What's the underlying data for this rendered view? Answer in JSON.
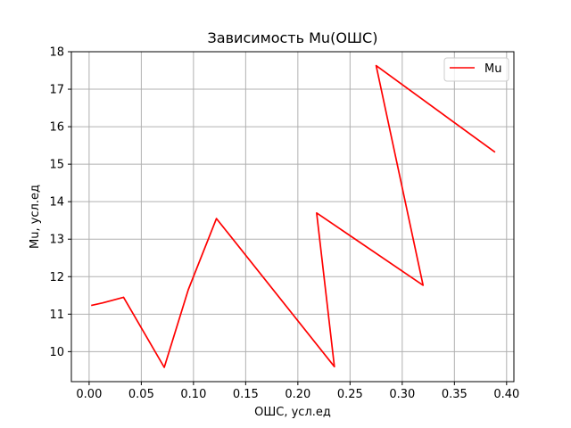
{
  "chart_data": {
    "type": "line",
    "title": "Зависимость Mu(ОШС)",
    "xlabel": "ОШС, усл.ед",
    "ylabel": "Mu, усл.ед",
    "xlim": [
      -0.017,
      0.407
    ],
    "ylim": [
      9.2,
      18.0
    ],
    "xticks": [
      0.0,
      0.05,
      0.1,
      0.15,
      0.2,
      0.25,
      0.3,
      0.35,
      0.4
    ],
    "xtick_labels": [
      "0.00",
      "0.05",
      "0.10",
      "0.15",
      "0.20",
      "0.25",
      "0.30",
      "0.35",
      "0.40"
    ],
    "yticks": [
      10,
      11,
      12,
      13,
      14,
      15,
      16,
      17,
      18
    ],
    "ytick_labels": [
      "10",
      "11",
      "12",
      "13",
      "14",
      "15",
      "16",
      "17",
      "18"
    ],
    "grid": true,
    "legend_position": "top-right",
    "series": [
      {
        "name": "Mu",
        "color": "#ff0000",
        "x": [
          0.002,
          0.013,
          0.033,
          0.072,
          0.095,
          0.122,
          0.235,
          0.218,
          0.32,
          0.275,
          0.389
        ],
        "y": [
          11.23,
          11.3,
          11.45,
          9.58,
          11.65,
          13.55,
          9.6,
          13.7,
          11.77,
          17.63,
          15.32
        ]
      }
    ]
  }
}
